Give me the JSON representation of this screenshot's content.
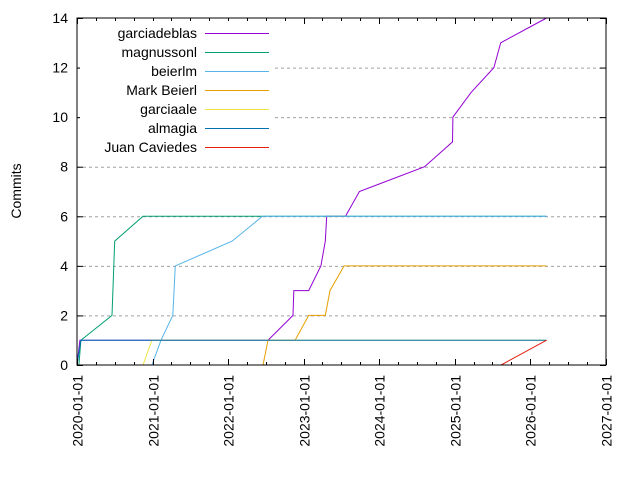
{
  "chart_data": {
    "type": "line",
    "title": "",
    "xlabel": "",
    "ylabel": "Commits",
    "xlim": [
      "2020-01-01",
      "2027-01-01"
    ],
    "ylim": [
      0,
      14
    ],
    "x_ticks": [
      "2020-01-01",
      "2021-01-01",
      "2022-01-01",
      "2023-01-01",
      "2024-01-01",
      "2025-01-01",
      "2026-01-01",
      "2027-01-01"
    ],
    "y_ticks": [
      0,
      2,
      4,
      6,
      8,
      10,
      12,
      14
    ],
    "grid": "horizontal dashed",
    "legend_position": "top-left",
    "series": [
      {
        "name": "garciadeblas",
        "color": "#9400d3",
        "points": [
          [
            "2020-01-01",
            0
          ],
          [
            "2020-01-15",
            1
          ],
          [
            "2022-07-12",
            1
          ],
          [
            "2022-11-10",
            2
          ],
          [
            "2022-11-14",
            3
          ],
          [
            "2023-01-25",
            3
          ],
          [
            "2023-03-25",
            4
          ],
          [
            "2023-04-15",
            5
          ],
          [
            "2023-04-22",
            6
          ],
          [
            "2023-07-22",
            6
          ],
          [
            "2023-09-27",
            7
          ],
          [
            "2024-08-07",
            8
          ],
          [
            "2024-12-20",
            9
          ],
          [
            "2024-12-22",
            10
          ],
          [
            "2025-03-20",
            11
          ],
          [
            "2025-07-08",
            12
          ],
          [
            "2025-08-10",
            13
          ],
          [
            "2026-03-20",
            14
          ]
        ]
      },
      {
        "name": "magnussonl",
        "color": "#009e73",
        "points": [
          [
            "2020-01-10",
            0
          ],
          [
            "2020-01-20",
            1
          ],
          [
            "2020-06-18",
            2
          ],
          [
            "2020-07-01",
            5
          ],
          [
            "2020-11-15",
            6
          ],
          [
            "2026-03-20",
            6
          ]
        ]
      },
      {
        "name": "beierlm",
        "color": "#56b4e9",
        "points": [
          [
            "2020-12-28",
            0
          ],
          [
            "2021-02-10",
            1
          ],
          [
            "2021-04-08",
            2
          ],
          [
            "2021-04-20",
            4
          ],
          [
            "2022-01-20",
            5
          ],
          [
            "2022-06-15",
            6
          ],
          [
            "2026-03-20",
            6
          ]
        ]
      },
      {
        "name": "Mark Beierl",
        "color": "#e69f00",
        "points": [
          [
            "2022-06-18",
            0
          ],
          [
            "2022-07-12",
            1
          ],
          [
            "2022-11-20",
            1
          ],
          [
            "2023-01-25",
            2
          ],
          [
            "2023-04-15",
            2
          ],
          [
            "2023-05-08",
            3
          ],
          [
            "2023-07-15",
            4
          ],
          [
            "2026-03-20",
            4
          ]
        ]
      },
      {
        "name": "garciaale",
        "color": "#f0e442",
        "points": [
          [
            "2020-11-15",
            0
          ],
          [
            "2020-12-28",
            1
          ],
          [
            "2026-03-20",
            1
          ]
        ]
      },
      {
        "name": "almagia",
        "color": "#0072b2",
        "points": [
          [
            "2020-01-01",
            0
          ],
          [
            "2020-01-20",
            1
          ],
          [
            "2026-03-20",
            1
          ]
        ]
      },
      {
        "name": "Juan Caviedes",
        "color": "#e51e10",
        "points": [
          [
            "2025-08-12",
            0
          ],
          [
            "2026-03-20",
            1
          ]
        ]
      }
    ]
  }
}
